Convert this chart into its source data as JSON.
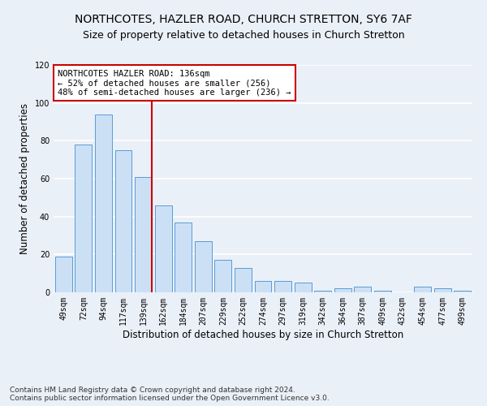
{
  "title1": "NORTHCOTES, HAZLER ROAD, CHURCH STRETTON, SY6 7AF",
  "title2": "Size of property relative to detached houses in Church Stretton",
  "xlabel": "Distribution of detached houses by size in Church Stretton",
  "ylabel": "Number of detached properties",
  "footnote": "Contains HM Land Registry data © Crown copyright and database right 2024.\nContains public sector information licensed under the Open Government Licence v3.0.",
  "bar_labels": [
    "49sqm",
    "72sqm",
    "94sqm",
    "117sqm",
    "139sqm",
    "162sqm",
    "184sqm",
    "207sqm",
    "229sqm",
    "252sqm",
    "274sqm",
    "297sqm",
    "319sqm",
    "342sqm",
    "364sqm",
    "387sqm",
    "409sqm",
    "432sqm",
    "454sqm",
    "477sqm",
    "499sqm"
  ],
  "bar_values": [
    19,
    78,
    94,
    75,
    61,
    46,
    37,
    27,
    17,
    13,
    6,
    6,
    5,
    1,
    2,
    3,
    1,
    0,
    3,
    2,
    1
  ],
  "bar_color": "#cce0f5",
  "bar_edge_color": "#5b9bd5",
  "highlight_bar_index": 4,
  "highlight_line_color": "#cc0000",
  "annotation_text": "NORTHCOTES HAZLER ROAD: 136sqm\n← 52% of detached houses are smaller (256)\n48% of semi-detached houses are larger (236) →",
  "annotation_box_color": "#ffffff",
  "annotation_box_edge_color": "#cc0000",
  "ylim": [
    0,
    120
  ],
  "yticks": [
    0,
    20,
    40,
    60,
    80,
    100,
    120
  ],
  "bg_color": "#eaf0f8",
  "plot_bg_color": "#eaf0f8",
  "grid_color": "#ffffff",
  "title1_fontsize": 10,
  "title2_fontsize": 9,
  "xlabel_fontsize": 8.5,
  "ylabel_fontsize": 8.5,
  "tick_fontsize": 7,
  "footnote_fontsize": 6.5,
  "ann_fontsize": 7.5
}
